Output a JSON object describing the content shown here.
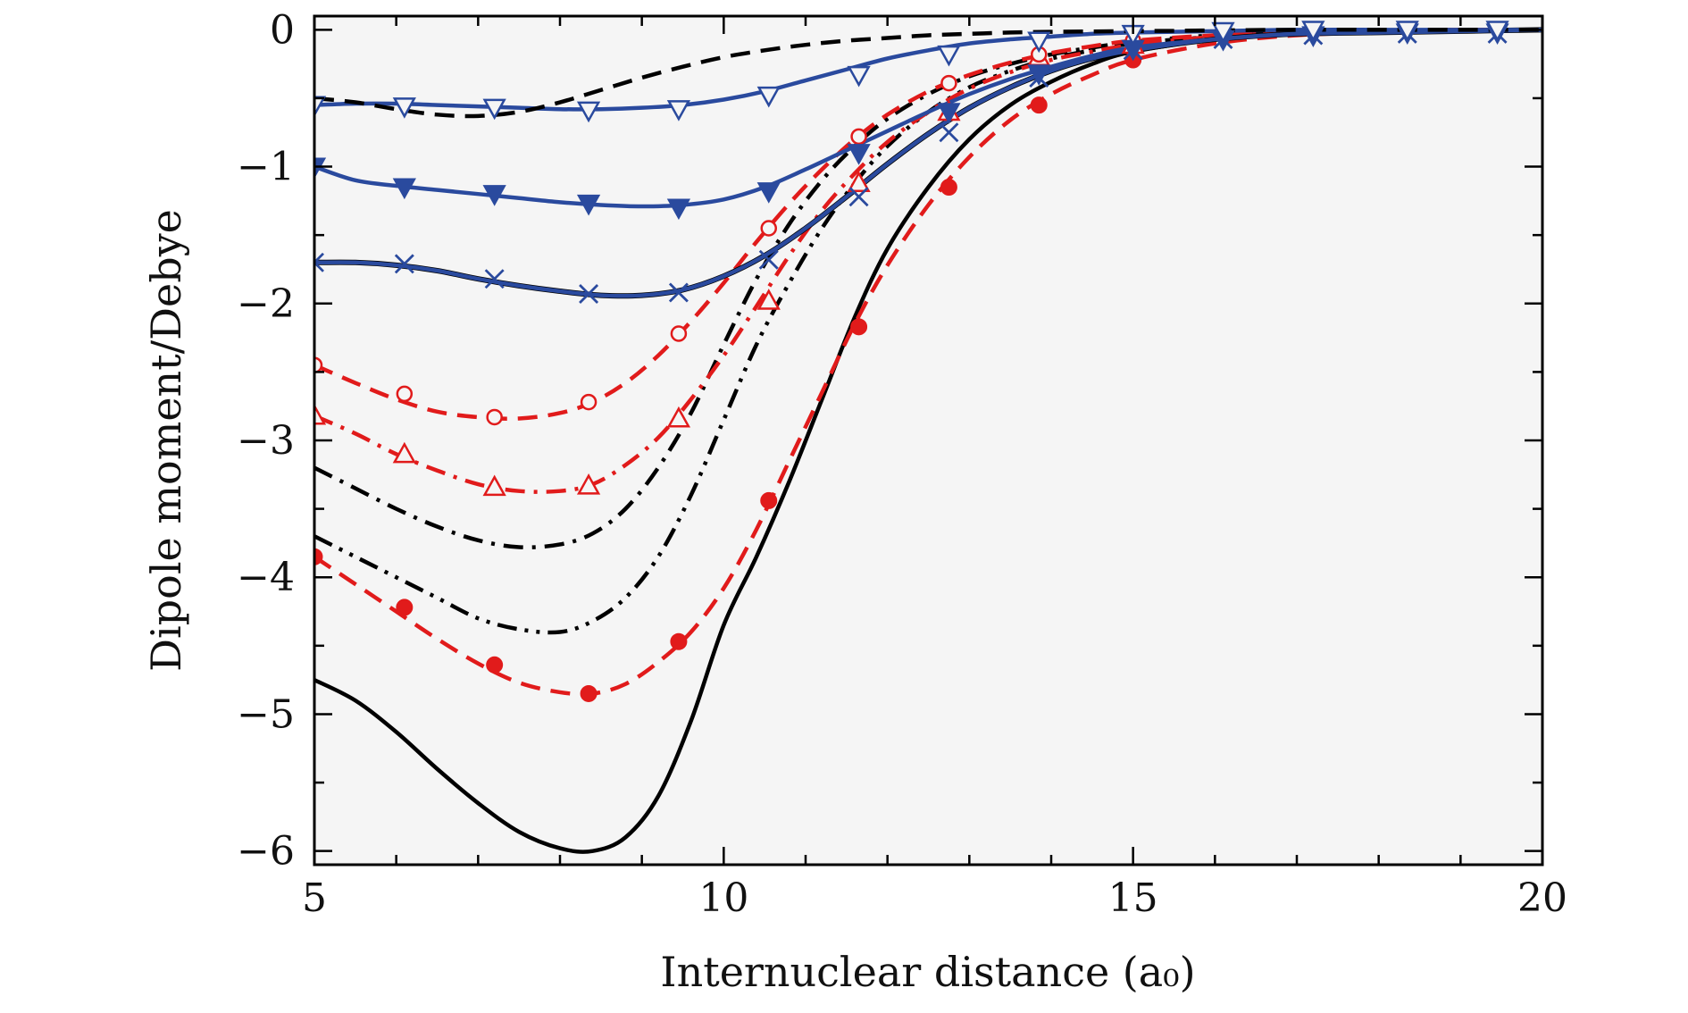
{
  "chart_data": {
    "type": "line",
    "title": "",
    "xlabel": "Internuclear distance (a₀)",
    "ylabel": "Dipole moment/Debye",
    "xlim": [
      5,
      20
    ],
    "ylim": [
      -6.1,
      0.1
    ],
    "xticks": [
      5,
      10,
      15,
      20
    ],
    "yticks": [
      0,
      -1,
      -2,
      -3,
      -4,
      -5,
      -6
    ],
    "xtick_labels": [
      "5",
      "10",
      "15",
      "20"
    ],
    "ytick_labels": [
      "0",
      "−1",
      "−2",
      "−3",
      "−4",
      "−5",
      "−6"
    ],
    "x_minor_step": 1,
    "y_minor_step": 0.5,
    "grid": false,
    "background": "#f5f5f5",
    "series": [
      {
        "name": "black-solid",
        "color": "#000000",
        "dash": "solid",
        "marker": "none",
        "x": [
          5,
          5.5,
          6,
          6.5,
          7,
          7.5,
          8,
          8.4,
          8.8,
          9.2,
          9.6,
          10,
          10.4,
          10.8,
          11.2,
          11.6,
          12,
          12.5,
          13,
          13.5,
          14,
          14.5,
          15,
          16,
          17,
          18,
          19,
          20
        ],
        "y": [
          -4.75,
          -4.9,
          -5.13,
          -5.4,
          -5.65,
          -5.86,
          -5.98,
          -6.0,
          -5.9,
          -5.6,
          -5.05,
          -4.35,
          -3.85,
          -3.3,
          -2.7,
          -2.1,
          -1.6,
          -1.15,
          -0.8,
          -0.55,
          -0.38,
          -0.25,
          -0.16,
          -0.07,
          -0.03,
          -0.01,
          0.0,
          0.0
        ]
      },
      {
        "name": "red-dashed-filled-circle",
        "color": "#e11b1b",
        "dash": "dashed",
        "marker": "filled-circle",
        "x": [
          5,
          5.5,
          6,
          6.5,
          7,
          7.5,
          8,
          8.4,
          8.8,
          9.2,
          9.6,
          10,
          10.4,
          10.8,
          11.2,
          11.6,
          12,
          12.5,
          13,
          13.5,
          14,
          14.5,
          15,
          16,
          17,
          18,
          19,
          20
        ],
        "y": [
          -3.85,
          -4.05,
          -4.25,
          -4.45,
          -4.63,
          -4.77,
          -4.84,
          -4.85,
          -4.78,
          -4.62,
          -4.4,
          -4.08,
          -3.65,
          -3.15,
          -2.65,
          -2.15,
          -1.72,
          -1.28,
          -0.93,
          -0.66,
          -0.47,
          -0.33,
          -0.22,
          -0.1,
          -0.04,
          -0.02,
          -0.01,
          0.0
        ],
        "marker_x": [
          5,
          6.1,
          7.2,
          8.35,
          9.45,
          10.55,
          11.65,
          12.75,
          13.85,
          15
        ],
        "marker_y": [
          -3.85,
          -4.22,
          -4.64,
          -4.85,
          -4.47,
          -3.44,
          -2.17,
          -1.15,
          -0.55,
          -0.22
        ]
      },
      {
        "name": "black-dash-dot-dot-lower",
        "color": "#000000",
        "dash": "dash-dot-dot",
        "marker": "none",
        "x": [
          5,
          5.5,
          6,
          6.5,
          7,
          7.5,
          8,
          8.4,
          8.8,
          9.2,
          9.6,
          10,
          10.4,
          10.8,
          11.2,
          11.6,
          12,
          12.5,
          13,
          13.5,
          14,
          14.5,
          15,
          16,
          17,
          18,
          19,
          20
        ],
        "y": [
          -3.7,
          -3.85,
          -4.0,
          -4.15,
          -4.3,
          -4.38,
          -4.4,
          -4.32,
          -4.15,
          -3.85,
          -3.4,
          -2.85,
          -2.3,
          -1.85,
          -1.45,
          -1.12,
          -0.85,
          -0.6,
          -0.42,
          -0.3,
          -0.21,
          -0.15,
          -0.1,
          -0.05,
          -0.02,
          -0.01,
          0.0,
          0.0
        ]
      },
      {
        "name": "black-dash-dot-upper",
        "color": "#000000",
        "dash": "dash-dot",
        "marker": "none",
        "x": [
          5,
          5.5,
          6,
          6.5,
          7,
          7.5,
          8,
          8.4,
          8.8,
          9.2,
          9.6,
          10,
          10.4,
          10.8,
          11.2,
          11.6,
          12,
          12.5,
          13,
          13.5,
          14,
          14.5,
          15,
          16,
          17,
          18,
          19,
          20
        ],
        "y": [
          -3.2,
          -3.35,
          -3.5,
          -3.63,
          -3.73,
          -3.78,
          -3.76,
          -3.68,
          -3.5,
          -3.2,
          -2.8,
          -2.3,
          -1.82,
          -1.42,
          -1.1,
          -0.85,
          -0.65,
          -0.47,
          -0.34,
          -0.25,
          -0.18,
          -0.13,
          -0.09,
          -0.04,
          -0.02,
          -0.01,
          0.0,
          0.0
        ]
      },
      {
        "name": "red-dashdot-open-triangle",
        "color": "#e11b1b",
        "dash": "dash-dot",
        "marker": "open-triangle-up",
        "x": [
          5,
          5.5,
          6,
          6.5,
          7,
          7.5,
          8,
          8.4,
          8.8,
          9.2,
          9.6,
          10,
          10.4,
          10.8,
          11.2,
          11.6,
          12,
          12.5,
          13,
          13.5,
          14,
          14.5,
          15,
          16,
          17,
          18,
          19,
          20
        ],
        "y": [
          -2.82,
          -2.95,
          -3.1,
          -3.22,
          -3.32,
          -3.37,
          -3.37,
          -3.32,
          -3.18,
          -2.98,
          -2.7,
          -2.38,
          -2.02,
          -1.65,
          -1.32,
          -1.05,
          -0.82,
          -0.6,
          -0.43,
          -0.31,
          -0.22,
          -0.16,
          -0.11,
          -0.05,
          -0.02,
          -0.01,
          0.0,
          0.0
        ],
        "marker_x": [
          5,
          6.1,
          7.2,
          8.35,
          9.45,
          10.55,
          11.65,
          12.75,
          13.85,
          15
        ],
        "marker_y": [
          -2.82,
          -3.1,
          -3.34,
          -3.33,
          -2.84,
          -1.98,
          -1.12,
          -0.6,
          -0.2,
          -0.11
        ]
      },
      {
        "name": "red-dashed-open-circle",
        "color": "#e11b1b",
        "dash": "dashed",
        "marker": "open-circle",
        "x": [
          5,
          5.5,
          6,
          6.5,
          7,
          7.5,
          8,
          8.4,
          8.8,
          9.2,
          9.6,
          10,
          10.4,
          10.8,
          11.2,
          11.6,
          12,
          12.5,
          13,
          13.5,
          14,
          14.5,
          15,
          16,
          17,
          18,
          19,
          20
        ],
        "y": [
          -2.45,
          -2.58,
          -2.7,
          -2.79,
          -2.83,
          -2.84,
          -2.8,
          -2.72,
          -2.58,
          -2.38,
          -2.13,
          -1.85,
          -1.55,
          -1.27,
          -1.02,
          -0.8,
          -0.62,
          -0.45,
          -0.33,
          -0.24,
          -0.17,
          -0.12,
          -0.08,
          -0.04,
          -0.02,
          -0.01,
          0.0,
          0.0
        ],
        "marker_x": [
          5,
          6.1,
          7.2,
          8.35,
          9.45,
          10.55,
          11.65,
          12.75,
          13.85,
          15
        ],
        "marker_y": [
          -2.45,
          -2.66,
          -2.83,
          -2.72,
          -2.22,
          -1.45,
          -0.78,
          -0.39,
          -0.18,
          -0.08
        ]
      },
      {
        "name": "blue-solid-x",
        "color": "#2a4a9e",
        "dash": "solid",
        "marker": "x-cross",
        "x": [
          5,
          5.5,
          6,
          6.5,
          7,
          7.5,
          8,
          8.5,
          9,
          9.5,
          10,
          10.5,
          11,
          11.5,
          12,
          12.5,
          13,
          13.5,
          14,
          14.5,
          15,
          16,
          17,
          18,
          19,
          20
        ],
        "y": [
          -1.7,
          -1.7,
          -1.72,
          -1.76,
          -1.82,
          -1.87,
          -1.91,
          -1.94,
          -1.94,
          -1.9,
          -1.8,
          -1.65,
          -1.45,
          -1.22,
          -0.98,
          -0.76,
          -0.57,
          -0.42,
          -0.3,
          -0.21,
          -0.15,
          -0.07,
          -0.03,
          -0.02,
          -0.01,
          0.0
        ],
        "marker_x": [
          5,
          6.1,
          7.2,
          8.35,
          9.45,
          10.55,
          11.65,
          12.75,
          13.85,
          15,
          16.1,
          17.2,
          18.35,
          19.45
        ],
        "marker_y": [
          -1.7,
          -1.71,
          -1.82,
          -1.93,
          -1.92,
          -1.68,
          -1.22,
          -0.75,
          -0.35,
          -0.15,
          -0.07,
          -0.04,
          -0.03,
          -0.03
        ]
      },
      {
        "name": "blue-solid-filled-triangle-down",
        "color": "#2a4a9e",
        "dash": "solid",
        "marker": "filled-triangle-down",
        "x": [
          5,
          5.5,
          6,
          6.5,
          7,
          7.5,
          8,
          8.5,
          9,
          9.5,
          10,
          10.5,
          11,
          11.5,
          12,
          12.5,
          13,
          13.5,
          14,
          14.5,
          15,
          16,
          17,
          18,
          19,
          20
        ],
        "y": [
          -1.0,
          -1.1,
          -1.14,
          -1.17,
          -1.2,
          -1.23,
          -1.26,
          -1.28,
          -1.29,
          -1.28,
          -1.24,
          -1.15,
          -1.02,
          -0.88,
          -0.74,
          -0.6,
          -0.47,
          -0.36,
          -0.27,
          -0.19,
          -0.13,
          -0.07,
          -0.03,
          -0.02,
          -0.01,
          0.0
        ],
        "marker_x": [
          5,
          6.1,
          7.2,
          8.35,
          9.45,
          10.55,
          11.65,
          12.75,
          13.85,
          15,
          16.1,
          17.2,
          18.35,
          19.45
        ],
        "marker_y": [
          -1.0,
          -1.15,
          -1.2,
          -1.27,
          -1.3,
          -1.18,
          -0.9,
          -0.6,
          -0.32,
          -0.14,
          -0.07,
          -0.04,
          -0.02,
          -0.02
        ]
      },
      {
        "name": "blue-solid-open-triangle-down",
        "color": "#2a4a9e",
        "dash": "solid",
        "marker": "open-triangle-down",
        "x": [
          5,
          5.5,
          6,
          6.5,
          7,
          7.5,
          8,
          8.5,
          9,
          9.5,
          10,
          10.5,
          11,
          11.5,
          12,
          12.5,
          13,
          13.5,
          14,
          14.5,
          15,
          16,
          17,
          18,
          19,
          20
        ],
        "y": [
          -0.55,
          -0.54,
          -0.54,
          -0.55,
          -0.56,
          -0.57,
          -0.58,
          -0.58,
          -0.57,
          -0.55,
          -0.51,
          -0.45,
          -0.37,
          -0.29,
          -0.21,
          -0.15,
          -0.1,
          -0.07,
          -0.05,
          -0.03,
          -0.02,
          -0.01,
          0.0,
          0.0,
          0.0,
          0.0
        ],
        "marker_x": [
          5,
          6.1,
          7.2,
          8.35,
          9.45,
          10.55,
          11.65,
          12.75,
          13.85,
          15,
          16.1,
          17.2,
          18.35,
          19.45
        ],
        "marker_y": [
          -0.55,
          -0.56,
          -0.57,
          -0.59,
          -0.58,
          -0.48,
          -0.33,
          -0.18,
          -0.08,
          -0.03,
          -0.01,
          0.0,
          0.0,
          0.0
        ]
      },
      {
        "name": "black-dashed-top",
        "color": "#000000",
        "dash": "dashed",
        "marker": "none",
        "x": [
          5,
          5.5,
          6,
          6.5,
          7,
          7.5,
          8,
          8.5,
          9,
          9.5,
          10,
          10.5,
          11,
          11.5,
          12,
          12.5,
          13,
          13.5,
          14,
          15,
          16,
          17,
          18,
          19,
          20
        ],
        "y": [
          -0.5,
          -0.53,
          -0.58,
          -0.62,
          -0.63,
          -0.6,
          -0.53,
          -0.44,
          -0.35,
          -0.27,
          -0.2,
          -0.15,
          -0.11,
          -0.08,
          -0.06,
          -0.04,
          -0.03,
          -0.02,
          -0.015,
          -0.01,
          -0.005,
          0.0,
          0.0,
          0.0,
          0.0
        ]
      }
    ]
  }
}
